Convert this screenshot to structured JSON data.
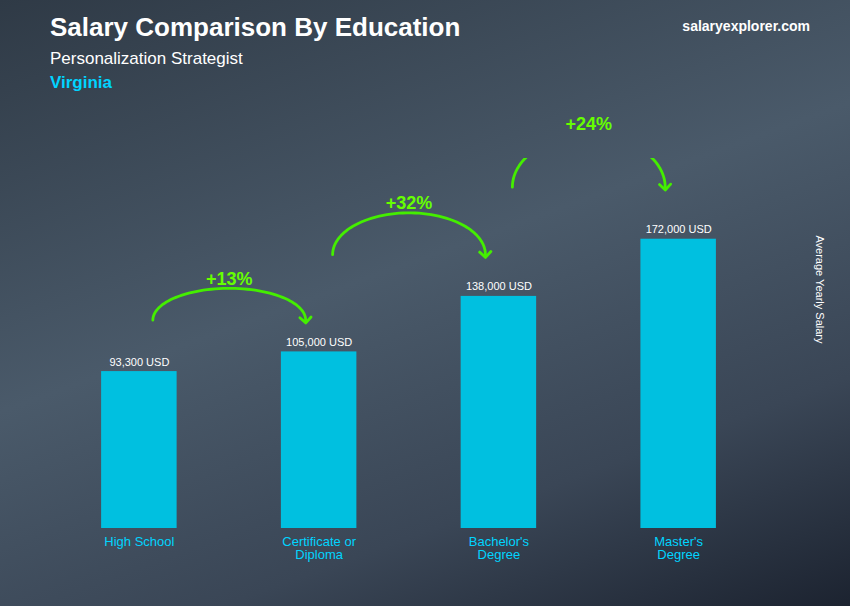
{
  "chart_data": {
    "type": "bar",
    "title": "Salary Comparison By Education",
    "subtitle": [
      "Personalization Strategist",
      "Virginia"
    ],
    "caption": "salaryexplorer.com",
    "categories": [
      "High School",
      "Certificate or\nDiploma",
      "Bachelor's\nDegree",
      "Master's\nDegree"
    ],
    "values": [
      93300,
      105000,
      138000,
      172000
    ],
    "value_labels": [
      "93,300 USD",
      "105,000 USD",
      "138,000 USD",
      "172,000 USD"
    ],
    "data_labels": true,
    "annotations": [
      "+13%",
      "+32%",
      "+24%"
    ],
    "ylabel": "Average Yearly Salary",
    "ylim": [
      0,
      220000
    ],
    "tick_labels": "x",
    "grid": false,
    "color": "#00c0e0"
  }
}
